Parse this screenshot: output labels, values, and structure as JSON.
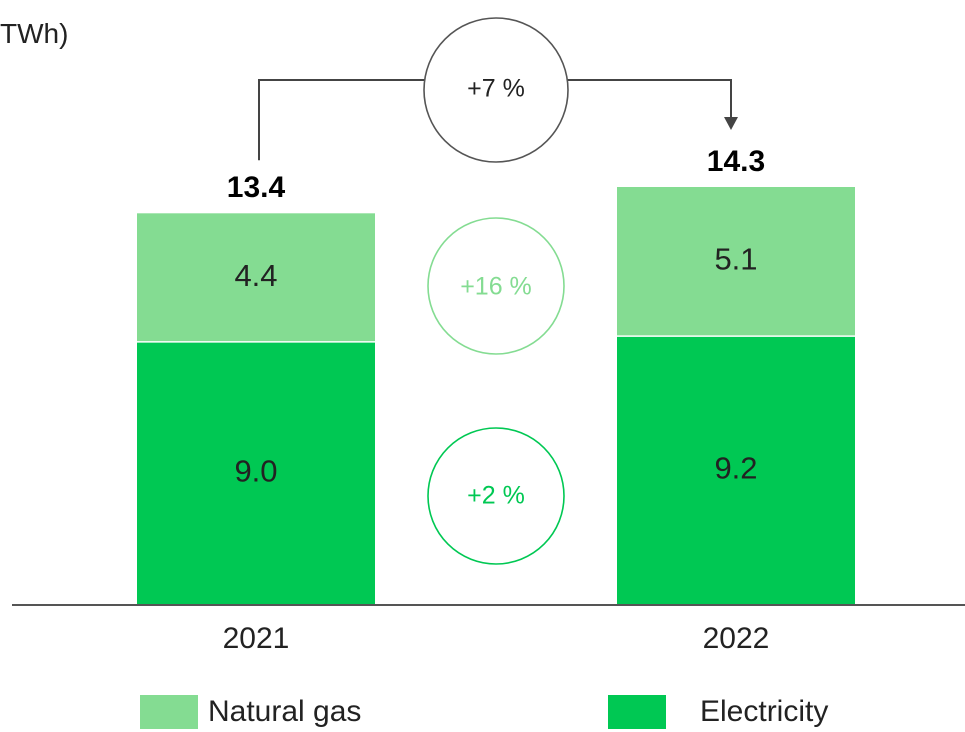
{
  "chart_data": {
    "type": "bar",
    "stacked": true,
    "unit_label": "TWh)",
    "categories": [
      "2021",
      "2022"
    ],
    "series": [
      {
        "name": "Electricity",
        "color": "#00c853",
        "values": [
          9.0,
          9.2
        ],
        "labels": [
          "9.0",
          "9.2"
        ]
      },
      {
        "name": "Natural gas",
        "color": "#84dc92",
        "values": [
          4.4,
          5.1
        ],
        "labels": [
          "4.4",
          "5.1"
        ]
      }
    ],
    "totals": [
      "13.4",
      "14.3"
    ],
    "ylim": [
      0,
      14.3
    ],
    "grid": false,
    "legend_position": "bottom",
    "annotations": {
      "total_change": {
        "text": "+7 %",
        "color": "#555555"
      },
      "natural_gas_change": {
        "text": "+16 %",
        "color": "#84dc92"
      },
      "electricity_change": {
        "text": "+2 %",
        "color": "#00c853"
      }
    }
  }
}
